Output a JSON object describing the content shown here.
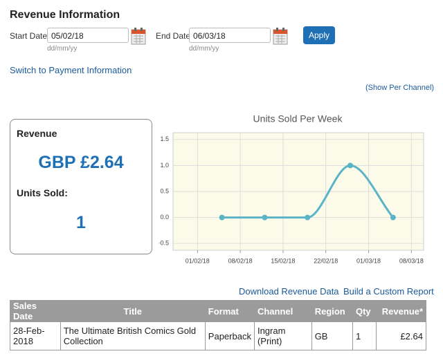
{
  "header": {
    "title": "Revenue Information"
  },
  "form": {
    "start_label": "Start Date:",
    "start_value": "05/02/18",
    "start_hint": "dd/mm/yy",
    "end_label": "End Date:",
    "end_value": "06/03/18",
    "end_hint": "dd/mm/yy",
    "apply": "Apply"
  },
  "links": {
    "switch": "Switch to Payment Information",
    "per_channel": "(Show Per Channel)",
    "download": "Download Revenue Data",
    "custom": "Build a Custom Report"
  },
  "summary": {
    "revenue_label": "Revenue",
    "revenue": "GBP £2.64",
    "units_label": "Units Sold:",
    "units": 1
  },
  "chart_data": {
    "type": "line",
    "title": "Units Sold Per Week",
    "x": [
      "05/02/18",
      "12/02/18",
      "19/02/18",
      "26/02/18",
      "05/03/18"
    ],
    "values": [
      0,
      0,
      0,
      1,
      0
    ],
    "color": "#5ab4c8",
    "xlim": [
      "28/01/18",
      "10/03/18"
    ],
    "xticks": [
      "01/02/18",
      "08/02/18",
      "15/02/18",
      "22/02/18",
      "01/03/18",
      "08/03/18"
    ],
    "ylim": [
      -0.63,
      1.63
    ],
    "yticks": [
      1.5,
      {
        "value": 1,
        "label": "1.0"
      },
      0.5,
      {
        "value": 0,
        "label": "0.0"
      },
      -0.5
    ],
    "grid": true
  },
  "table": {
    "columns": [
      "Sales Date",
      "Title",
      "Format",
      "Channel",
      "Region",
      "Qty",
      "Revenue*"
    ],
    "rows": [
      [
        "28-Feb-2018",
        "The Ultimate British Comics Gold Collection",
        "Paperback",
        "Ingram (Print)",
        "GB",
        1,
        "£2.64"
      ]
    ]
  }
}
